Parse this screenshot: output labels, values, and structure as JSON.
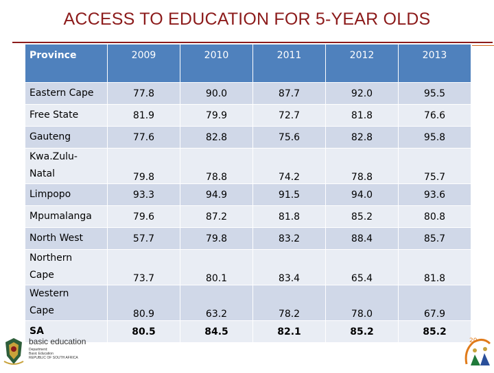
{
  "title": "ACCESS TO EDUCATION FOR 5-YEAR OLDS",
  "table": {
    "headers": [
      "Province",
      "2009",
      "2010",
      "2011",
      "2012",
      "2013"
    ],
    "rows": [
      {
        "province": [
          "Eastern Cape"
        ],
        "values": [
          "77.8",
          "90.0",
          "87.7",
          "92.0",
          "95.5"
        ]
      },
      {
        "province": [
          "Free State"
        ],
        "values": [
          "81.9",
          "79.9",
          "72.7",
          "81.8",
          "76.6"
        ]
      },
      {
        "province": [
          "Gauteng"
        ],
        "values": [
          "77.6",
          "82.8",
          "75.6",
          "82.8",
          "95.8"
        ]
      },
      {
        "province": [
          "Kwa.Zulu-",
          "Natal"
        ],
        "values": [
          "79.8",
          "78.8",
          "74.2",
          "78.8",
          "75.7"
        ]
      },
      {
        "province": [
          "Limpopo"
        ],
        "values": [
          "93.3",
          "94.9",
          "91.5",
          "94.0",
          "93.6"
        ]
      },
      {
        "province": [
          "Mpumalanga"
        ],
        "values": [
          "79.6",
          "87.2",
          "81.8",
          "85.2",
          "80.8"
        ]
      },
      {
        "province": [
          "North West"
        ],
        "values": [
          "57.7",
          "79.8",
          "83.2",
          "88.4",
          "85.7"
        ]
      },
      {
        "province": [
          "Northern",
          "Cape"
        ],
        "values": [
          "73.7",
          "80.1",
          "83.4",
          "65.4",
          "81.8"
        ]
      },
      {
        "province": [
          "Western",
          "Cape"
        ],
        "values": [
          "80.9",
          "63.2",
          "78.2",
          "78.0",
          "67.9"
        ]
      },
      {
        "province": [
          "SA"
        ],
        "values": [
          "80.5",
          "84.5",
          "82.1",
          "85.2",
          "85.2"
        ]
      }
    ]
  },
  "footer": {
    "logo_brand": "basic education",
    "logo_lines": [
      "Department:",
      "Basic Education",
      "REPUBLIC OF SOUTH AFRICA"
    ],
    "right_logo_number": "20"
  },
  "colors": {
    "title": "#8c1b1b",
    "header_fill": "#4f81bd",
    "row_odd": "#d0d8e8",
    "row_even": "#e9edf4"
  },
  "icons": [
    "coat-of-arms-icon",
    "anniversary-logo-icon"
  ]
}
